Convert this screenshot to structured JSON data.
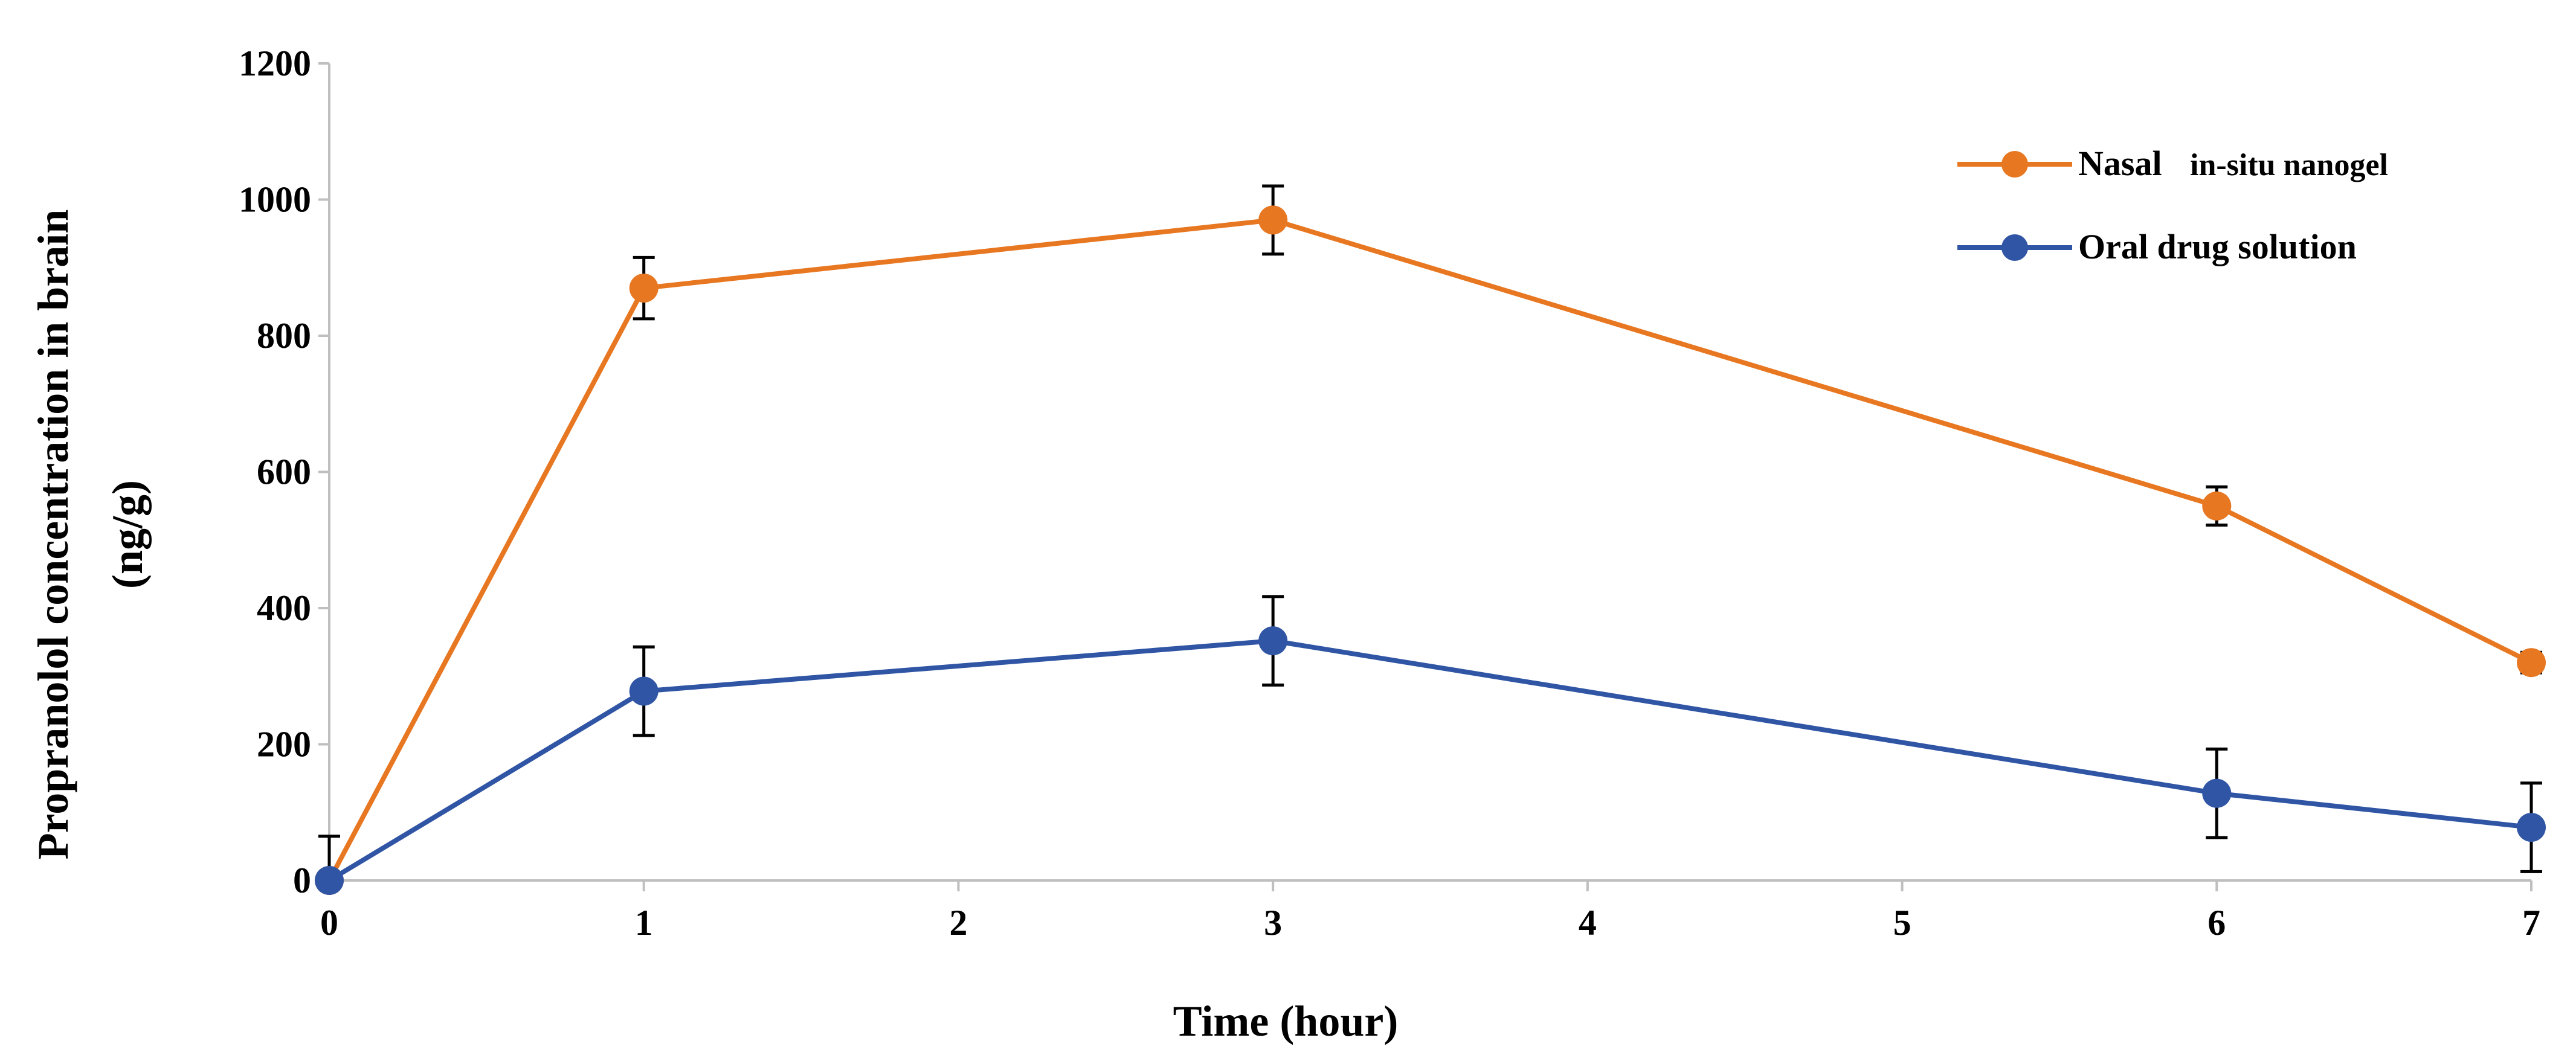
{
  "chart_data": {
    "type": "line",
    "title": "",
    "xlabel": "Time (hour)",
    "ylabel_line1": "Propranolol concentration in brain",
    "ylabel_line2": "(ng/g)",
    "xlim": [
      0,
      7
    ],
    "ylim": [
      0,
      1200
    ],
    "x_ticks": [
      0,
      1,
      2,
      3,
      4,
      5,
      6,
      7
    ],
    "y_ticks": [
      0,
      200,
      400,
      600,
      800,
      1000,
      1200
    ],
    "grid": false,
    "legend_position": "top-right",
    "series": [
      {
        "name": "Nasal in-situ nanogel",
        "legend_part1": "Nasal",
        "legend_part2": "in-situ nanogel",
        "color": "#E87722",
        "x": [
          0,
          1,
          3,
          6,
          7
        ],
        "values": [
          0,
          870,
          970,
          550,
          320
        ],
        "errors": [
          0,
          45,
          50,
          28,
          15
        ]
      },
      {
        "name": "Oral drug solution",
        "color": "#2F55A4",
        "x": [
          0,
          1,
          3,
          6,
          7
        ],
        "values": [
          0,
          278,
          352,
          128,
          78
        ],
        "errors": [
          65,
          65,
          65,
          65,
          65
        ]
      }
    ]
  }
}
